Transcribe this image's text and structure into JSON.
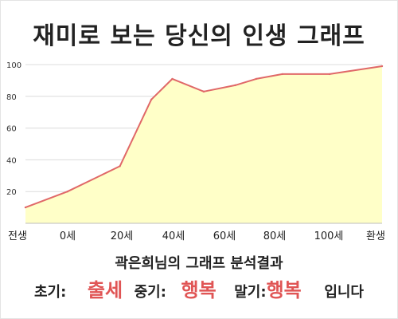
{
  "title": "재미로 보는 당신의 인생 그래프",
  "chart_data": {
    "type": "area",
    "x_categories": [
      "전생",
      "0세",
      "20세",
      "40세",
      "60세",
      "80세",
      "100세",
      "환생"
    ],
    "points": [
      {
        "x": -16,
        "y": 10
      },
      {
        "x": 0,
        "y": 20
      },
      {
        "x": 20,
        "y": 36
      },
      {
        "x": 32,
        "y": 78
      },
      {
        "x": 40,
        "y": 91
      },
      {
        "x": 52,
        "y": 83
      },
      {
        "x": 64,
        "y": 87
      },
      {
        "x": 72,
        "y": 91
      },
      {
        "x": 82,
        "y": 94
      },
      {
        "x": 100,
        "y": 94
      },
      {
        "x": 120,
        "y": 99
      }
    ],
    "xlim": [
      -16,
      120
    ],
    "ylim": [
      0,
      100
    ],
    "y_ticks": [
      20,
      40,
      60,
      80,
      100
    ],
    "grid": true,
    "colors": {
      "fill": "#ffffc8",
      "line": "#e06868",
      "grid": "#dcdcdc"
    }
  },
  "summary": {
    "text": "곽은희님의 그래프 분석결과",
    "early_label": "초기:",
    "early_value": "출세",
    "mid_label": "중기:",
    "mid_value": "행복",
    "late_label": "말기:",
    "late_value": "행복",
    "ending": "입니다"
  }
}
